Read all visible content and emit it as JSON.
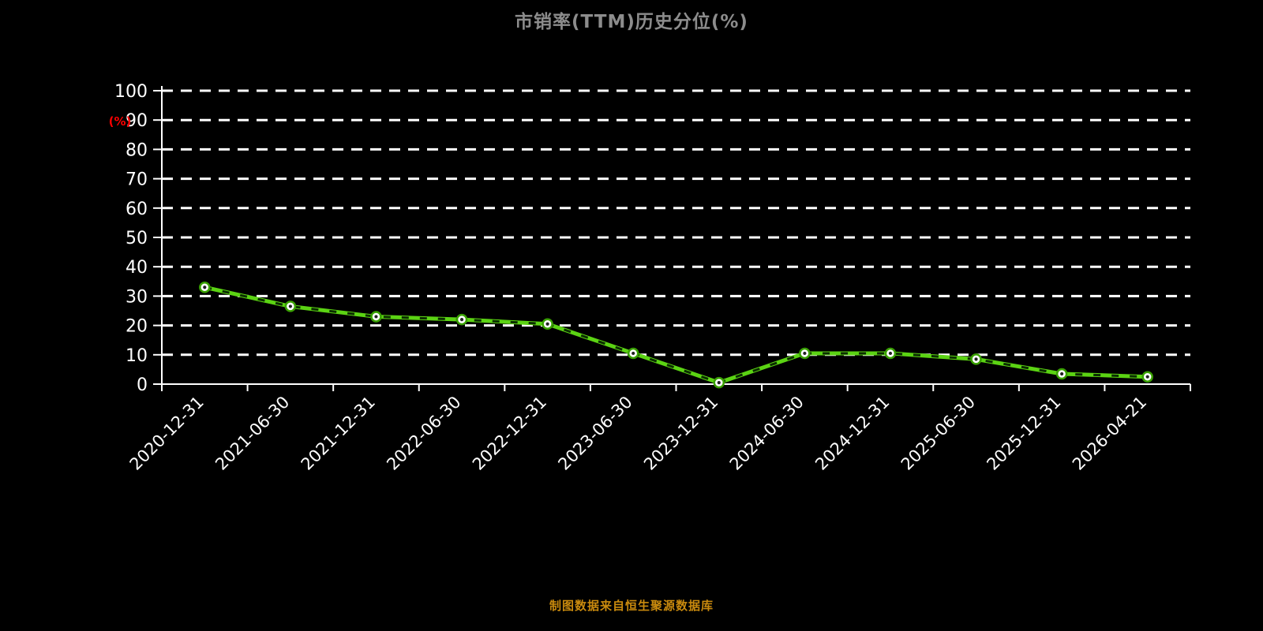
{
  "title": "市销率(TTM)历史分位(%)",
  "footer": "制图数据来自恒生聚源数据库",
  "chart_data": {
    "type": "line",
    "title": "市销率(TTM)历史分位(%)",
    "xlabel": "",
    "ylabel": "(%)",
    "ylim": [
      0,
      100
    ],
    "ytick_step": 10,
    "ytick_labels": [
      "0",
      "10",
      "20",
      "30",
      "40",
      "50",
      "60",
      "70",
      "80",
      "90",
      "100"
    ],
    "grid": true,
    "grid_style": "dashed",
    "legend": "none",
    "categories": [
      "2020-12-31",
      "2021-06-30",
      "2021-12-31",
      "2022-06-30",
      "2022-12-31",
      "2023-06-30",
      "2023-12-31",
      "2024-06-30",
      "2024-12-31",
      "2025-06-30",
      "2025-12-31",
      "2026-04-21"
    ],
    "series": [
      {
        "name": "市销率(TTM)历史分位",
        "values": [
          33,
          26.5,
          23,
          22,
          20.5,
          10.5,
          0.5,
          10.5,
          10.5,
          8.5,
          3.5,
          2.5
        ]
      }
    ],
    "colors": {
      "background": "#000000",
      "line": "#5bd313",
      "line_dash_overlay": "#0b2e00",
      "marker_fill": "#ffffff",
      "marker_stroke": "#39a000",
      "marker_dot": "#222222",
      "grid": "#ffffff",
      "axis": "#ffffff",
      "tick_label": "#ffffff",
      "ylabel_color": "#ff0000",
      "title_color": "#8c8c8c",
      "footer_color": "#c98a0e"
    }
  }
}
